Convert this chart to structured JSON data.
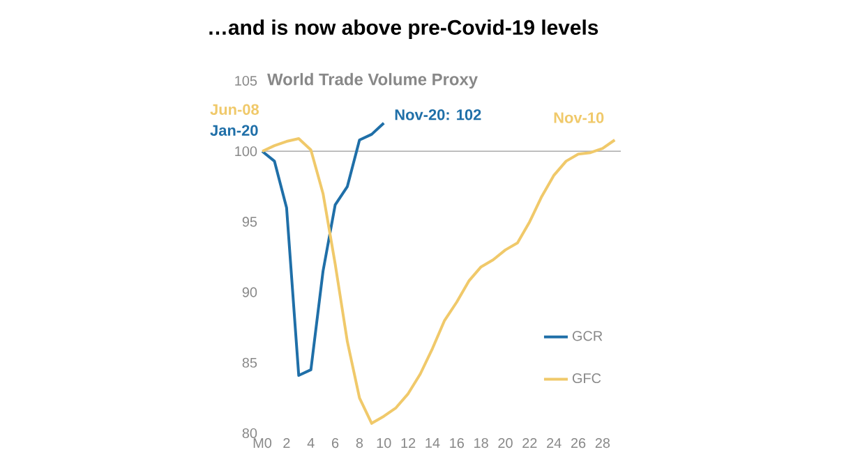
{
  "chart_data": {
    "type": "line",
    "title": "…and is now above pre-Covid-19 levels",
    "subtitle": "World Trade Volume Proxy",
    "x": [
      0,
      1,
      2,
      3,
      4,
      5,
      6,
      7,
      8,
      9,
      10,
      11,
      12,
      13,
      14,
      15,
      16,
      17,
      18,
      19,
      20,
      21,
      22,
      23,
      24,
      25,
      26,
      27,
      28,
      29
    ],
    "series": [
      {
        "name": "GCR",
        "color": "#1f6fa8",
        "x": [
          0,
          1,
          2,
          3,
          4,
          5,
          6,
          7,
          8,
          9,
          10
        ],
        "values": [
          100,
          99.3,
          96,
          84.1,
          84.5,
          91.5,
          96.2,
          97.5,
          100.8,
          101.2,
          102
        ]
      },
      {
        "name": "GFC",
        "color": "#f0c96a",
        "values": [
          100,
          100.4,
          100.7,
          100.9,
          100.1,
          97,
          92,
          86.5,
          82.5,
          80.7,
          81.2,
          81.8,
          82.8,
          84.2,
          86,
          88,
          89.3,
          90.8,
          91.8,
          92.3,
          93,
          93.5,
          95,
          96.8,
          98.3,
          99.3,
          99.8,
          99.9,
          100.2,
          100.8
        ]
      }
    ],
    "xlim": [
      0,
      29.5
    ],
    "ylim": [
      80,
      105
    ],
    "xticks": [
      {
        "value": 0,
        "label": "M0"
      },
      2,
      4,
      6,
      8,
      10,
      12,
      14,
      16,
      18,
      20,
      22,
      24,
      26,
      28
    ],
    "yticks": [
      80,
      85,
      90,
      95,
      100,
      105
    ],
    "ref_lines": [
      {
        "axis": "y",
        "value": 100,
        "color": "#999999"
      }
    ],
    "annotations": [
      {
        "text": "Jun-08",
        "x": 0,
        "y": 100
      },
      {
        "text": "Jan-20",
        "x": 0,
        "y": 100
      },
      {
        "text": "Nov-20: 102",
        "x": 10,
        "y": 102
      },
      {
        "text": "Nov-10",
        "x": 29,
        "y": 100.8
      }
    ],
    "legend": "bottom right",
    "grid": false,
    "marker": "none",
    "line_style": "solid"
  }
}
